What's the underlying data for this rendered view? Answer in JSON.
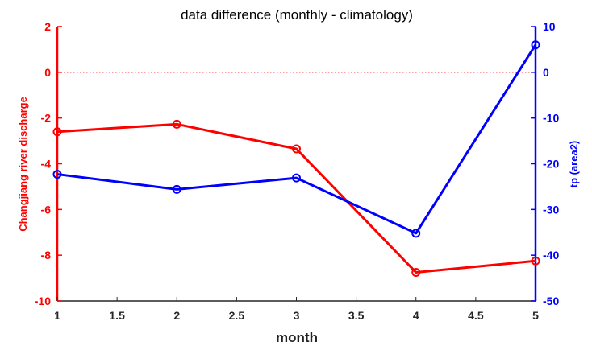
{
  "chart_data": {
    "type": "line",
    "title": "data difference (monthly - climatology)",
    "xlabel": "month",
    "ylabel_left": "Changjiang river discharge",
    "ylabel_right": "tp (area2)",
    "xlim": [
      1,
      5
    ],
    "ylim_left": [
      -10,
      2
    ],
    "ylim_right": [
      -50,
      10
    ],
    "x_ticks": [
      "1",
      "1.5",
      "2",
      "2.5",
      "3",
      "3.5",
      "4",
      "4.5",
      "5"
    ],
    "y_ticks_left": [
      "2",
      "0",
      "-2",
      "-4",
      "-6",
      "-8",
      "-10"
    ],
    "y_ticks_right": [
      "10",
      "0",
      "-10",
      "-20",
      "-30",
      "-40",
      "-50"
    ],
    "reference_line": {
      "axis": "left",
      "y": 0,
      "style": "dotted",
      "color": "#ff0000"
    },
    "grid": false,
    "series": [
      {
        "axis": "left",
        "color": "#ff0000",
        "marker": "circle",
        "x": [
          1,
          2,
          3,
          4,
          5
        ],
        "y": [
          -2.6,
          -2.27,
          -3.35,
          -8.75,
          -8.25
        ]
      },
      {
        "axis": "right",
        "color": "#0000ff",
        "marker": "circle",
        "x": [
          1,
          2,
          3,
          4,
          5
        ],
        "y": [
          -22.3,
          -25.6,
          -23.1,
          -35.2,
          6.0
        ]
      }
    ]
  }
}
